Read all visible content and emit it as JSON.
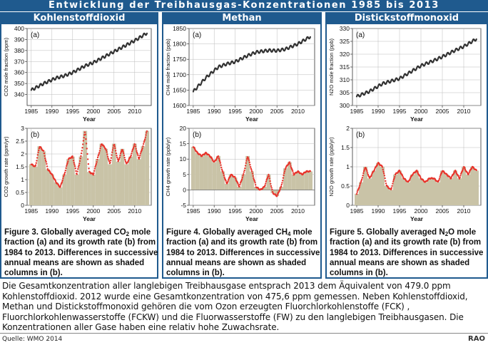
{
  "title": "Entwicklung der Treibhausgas-Konzentrationen 1985 bis 2013",
  "columns": [
    {
      "header": "Kohlenstoffdioxid",
      "caption_pre": "Figure 3. Globally averaged CO",
      "caption_sub": "2",
      "caption_post": " mole fraction (a) and its growth rate (b) from 1984 to 2013. Differences in successive annual means are shown as shaded columns in (b)."
    },
    {
      "header": "Methan",
      "caption_pre": "Figure 4. Globally averaged CH",
      "caption_sub": "4",
      "caption_post": " mole fraction (a) and its growth rate (b) from 1984 to 2013. Differences in successive annual means are shown as shaded columns in (b)."
    },
    {
      "header": "Distickstoffmonoxid",
      "caption_pre": "Figure 5. Globally averaged N",
      "caption_sub": "2",
      "caption_post": "O mole fraction (a) and its growth rate (b) from 1984 to 2013. Differences in successive annual means are shown as shaded columns in (b)."
    }
  ],
  "description": "Die Gesamtkonzentration aller langlebigen Treibhausgase entsprach 2013 dem Äquivalent von 479.0 ppm Kohlenstoffdioxid. 2012 wurde eine Gesamtkonzentration von 475,6 ppm gemessen. Neben Kohlenstoffdioxid, Methan und Distickstoffmonoxid gehören die vom Ozon erzeugten Fluorchlorkohlenstoffe (FCK) , Fluorchlorkohlenwasserstoffe (FCKW) und die Fluorwasserstoffe (FW) zu den langlebigen Treibhausgasen. Die Konzentrationen aller Gase haben eine relativ hohe Zuwachsrate.",
  "source": "Quelle: WMO 2014",
  "logo": "RAO",
  "colors": {
    "header_bg": "#1f5a8e",
    "line_dark": "#333333",
    "growth_red": "#e8332b",
    "shade": "#c9c3a7"
  },
  "chart_data": [
    {
      "id": "co2_a",
      "type": "line",
      "panel_label": "(a)",
      "ylabel": "CO2 mole fraction (ppm)",
      "xlabel": "Year",
      "ylim": [
        330,
        400
      ],
      "xlim": [
        1984,
        2014
      ],
      "yticks": [
        340,
        350,
        360,
        370,
        380,
        390,
        400
      ],
      "xticks": [
        1985,
        1990,
        1995,
        2000,
        2005,
        2010
      ],
      "x": [
        1985,
        1988,
        1991,
        1993,
        1995,
        1998,
        2000,
        2003,
        2005,
        2008,
        2010,
        2013
      ],
      "values": [
        344.0,
        350.0,
        355.0,
        357.0,
        360.0,
        366.0,
        369.0,
        375.0,
        379.0,
        385.0,
        389.0,
        396.0
      ]
    },
    {
      "id": "co2_b",
      "type": "bar+line",
      "panel_label": "(b)",
      "ylabel": "CO2 growth rate (ppm/yr)",
      "xlabel": "Year",
      "ylim": [
        0,
        3
      ],
      "xlim": [
        1984,
        2014
      ],
      "yticks": [
        0,
        0.5,
        1,
        1.5,
        2,
        2.5,
        3
      ],
      "xticks": [
        1985,
        1990,
        1995,
        2000,
        2005,
        2010
      ],
      "categories": [
        1985,
        1986,
        1987,
        1988,
        1989,
        1990,
        1991,
        1992,
        1993,
        1994,
        1995,
        1996,
        1997,
        1998,
        1999,
        2000,
        2001,
        2002,
        2003,
        2004,
        2005,
        2006,
        2007,
        2008,
        2009,
        2010,
        2011,
        2012,
        2013
      ],
      "values": [
        1.6,
        1.5,
        2.3,
        2.1,
        1.4,
        1.2,
        0.9,
        0.7,
        1.2,
        1.8,
        1.9,
        1.2,
        1.9,
        2.9,
        1.3,
        1.2,
        1.8,
        2.4,
        2.2,
        1.6,
        2.4,
        1.7,
        2.2,
        1.6,
        1.9,
        2.4,
        1.8,
        2.3,
        2.9
      ]
    },
    {
      "id": "ch4_a",
      "type": "line",
      "panel_label": "(a)",
      "ylabel": "CH4 mole fraction (ppb)",
      "xlabel": "Year",
      "ylim": [
        1600,
        1850
      ],
      "xlim": [
        1984,
        2014
      ],
      "yticks": [
        1600,
        1650,
        1700,
        1750,
        1800,
        1850
      ],
      "xticks": [
        1985,
        1990,
        1995,
        2000,
        2005,
        2010
      ],
      "x": [
        1985,
        1988,
        1991,
        1993,
        1995,
        1998,
        2000,
        2003,
        2005,
        2007,
        2010,
        2013
      ],
      "values": [
        1645,
        1690,
        1725,
        1735,
        1742,
        1762,
        1773,
        1779,
        1778,
        1783,
        1800,
        1824
      ]
    },
    {
      "id": "ch4_b",
      "type": "bar+line",
      "panel_label": "(b)",
      "ylabel": "CH4 growth rate (ppb/yr)",
      "xlabel": "Year",
      "ylim": [
        -5,
        20
      ],
      "xlim": [
        1984,
        2014
      ],
      "yticks": [
        -5,
        0,
        5,
        10,
        15,
        20
      ],
      "xticks": [
        1985,
        1990,
        1995,
        2000,
        2005,
        2010
      ],
      "categories": [
        1985,
        1986,
        1987,
        1988,
        1989,
        1990,
        1991,
        1992,
        1993,
        1994,
        1995,
        1996,
        1997,
        1998,
        1999,
        2000,
        2001,
        2002,
        2003,
        2004,
        2005,
        2006,
        2007,
        2008,
        2009,
        2010,
        2011,
        2012,
        2013
      ],
      "values": [
        14,
        12,
        11,
        12,
        11,
        9,
        11,
        6,
        2,
        5,
        4,
        1,
        5,
        11,
        6,
        1,
        0,
        1,
        5,
        -1,
        -2,
        1,
        7,
        9,
        5,
        6,
        5,
        6,
        6
      ]
    },
    {
      "id": "n2o_a",
      "type": "line",
      "panel_label": "(a)",
      "ylabel": "N2O mole fraction (ppb)",
      "xlabel": "Year",
      "ylim": [
        300,
        330
      ],
      "xlim": [
        1984,
        2014
      ],
      "yticks": [
        300,
        305,
        310,
        315,
        320,
        325,
        330
      ],
      "xticks": [
        1985,
        1990,
        1995,
        2000,
        2005,
        2010
      ],
      "x": [
        1985,
        1988,
        1991,
        1993,
        1995,
        1998,
        2000,
        2003,
        2005,
        2008,
        2010,
        2013
      ],
      "values": [
        303.5,
        305.5,
        308.5,
        309.5,
        310.5,
        313.5,
        315.5,
        317.5,
        319.0,
        321.5,
        323.0,
        326.0
      ]
    },
    {
      "id": "n2o_b",
      "type": "bar+line",
      "panel_label": "(b)",
      "ylabel": "N2O growth rate (ppb/yr)",
      "xlabel": "Year",
      "ylim": [
        0,
        2
      ],
      "xlim": [
        1984,
        2014
      ],
      "yticks": [
        0,
        0.5,
        1,
        1.5,
        2
      ],
      "xticks": [
        1985,
        1990,
        1995,
        2000,
        2005,
        2010
      ],
      "categories": [
        1985,
        1986,
        1987,
        1988,
        1989,
        1990,
        1991,
        1992,
        1993,
        1994,
        1995,
        1996,
        1997,
        1998,
        1999,
        2000,
        2001,
        2002,
        2003,
        2004,
        2005,
        2006,
        2007,
        2008,
        2009,
        2010,
        2011,
        2012,
        2013
      ],
      "values": [
        0.3,
        0.6,
        1.0,
        0.7,
        0.9,
        1.1,
        1.0,
        0.5,
        0.4,
        0.8,
        0.9,
        0.7,
        0.6,
        0.8,
        0.9,
        0.7,
        0.6,
        0.7,
        0.7,
        0.6,
        0.9,
        0.8,
        0.7,
        0.9,
        0.7,
        1.0,
        0.8,
        1.0,
        0.9
      ]
    }
  ]
}
